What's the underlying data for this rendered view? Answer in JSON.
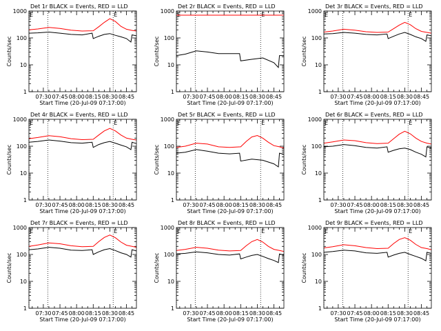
{
  "colors": {
    "events": "#000000",
    "lld": "#ff0000",
    "axis": "#000000",
    "background": "#ffffff"
  },
  "common": {
    "ylabel": "Counts/sec",
    "xlabel": "Start Time (20-Jul-09 07:17:00)",
    "xticks": [
      "07:30",
      "07:45",
      "08:00",
      "08:15",
      "08:30",
      "08:45"
    ],
    "yticks": [
      "1",
      "10",
      "100",
      "1000"
    ],
    "marker_labels": [
      "E",
      "E"
    ]
  },
  "chart_data": [
    {
      "type": "line",
      "title": "Det 1r BLACK = Events, RED = LLD",
      "xlim": [
        "07:17",
        "08:54"
      ],
      "ylim": [
        1,
        1000
      ],
      "yscale": "log",
      "markers": [
        "07:17",
        "07:34",
        "08:33"
      ],
      "series": [
        {
          "color": "red",
          "x": [
            "07:17",
            "07:25",
            "07:35",
            "07:45",
            "07:55",
            "08:05",
            "08:15",
            "08:20",
            "08:25",
            "08:30",
            "08:35",
            "08:40",
            "08:45",
            "08:50",
            "08:54"
          ],
          "y": [
            200,
            215,
            245,
            225,
            195,
            180,
            185,
            260,
            380,
            520,
            410,
            270,
            210,
            190,
            180
          ]
        },
        {
          "color": "black",
          "x": [
            "07:17",
            "07:25",
            "07:35",
            "07:45",
            "07:55",
            "08:05",
            "08:14",
            "08:15",
            "08:20",
            "08:25",
            "08:30",
            "08:35",
            "08:40",
            "08:45",
            "08:49",
            "08:50",
            "08:54"
          ],
          "y": [
            150,
            155,
            165,
            150,
            135,
            130,
            150,
            95,
            115,
            135,
            145,
            125,
            110,
            95,
            70,
            130,
            120
          ]
        }
      ]
    },
    {
      "type": "line",
      "title": "Det 2r BLACK = Events, RED = LLD",
      "xlim": [
        "07:17",
        "08:54"
      ],
      "ylim": [
        1,
        1000
      ],
      "yscale": "log",
      "markers": [
        "07:17",
        "07:34",
        "08:33"
      ],
      "series": [
        {
          "color": "red",
          "x": [
            "07:17",
            "07:35",
            "08:00",
            "08:30",
            "08:54"
          ],
          "y": [
            700,
            700,
            700,
            700,
            700
          ]
        },
        {
          "color": "black",
          "x": [
            "07:17",
            "07:25",
            "07:35",
            "07:45",
            "07:55",
            "08:05",
            "08:14",
            "08:15",
            "08:25",
            "08:35",
            "08:45",
            "08:49",
            "08:50",
            "08:54"
          ],
          "y": [
            22,
            25,
            33,
            30,
            26,
            26,
            26,
            14,
            16,
            18,
            12,
            8,
            22,
            22
          ]
        }
      ]
    },
    {
      "type": "line",
      "title": "Det 3r BLACK = Events, RED = LLD",
      "xlim": [
        "07:17",
        "08:54"
      ],
      "ylim": [
        1,
        1000
      ],
      "yscale": "log",
      "markers": [
        "07:17",
        "07:34",
        "08:33"
      ],
      "series": [
        {
          "color": "red",
          "x": [
            "07:17",
            "07:25",
            "07:35",
            "07:45",
            "07:55",
            "08:05",
            "08:15",
            "08:20",
            "08:25",
            "08:30",
            "08:35",
            "08:40",
            "08:45",
            "08:50",
            "08:54"
          ],
          "y": [
            165,
            180,
            210,
            195,
            170,
            160,
            165,
            220,
            300,
            380,
            310,
            220,
            175,
            160,
            150
          ]
        },
        {
          "color": "black",
          "x": [
            "07:17",
            "07:25",
            "07:35",
            "07:45",
            "07:55",
            "08:05",
            "08:14",
            "08:15",
            "08:20",
            "08:25",
            "08:30",
            "08:35",
            "08:40",
            "08:45",
            "08:49",
            "08:50",
            "08:54"
          ],
          "y": [
            140,
            145,
            160,
            150,
            135,
            130,
            140,
            95,
            115,
            140,
            160,
            135,
            110,
            95,
            75,
            130,
            120
          ]
        }
      ]
    },
    {
      "type": "line",
      "title": "Det 4r BLACK = Events, RED = LLD",
      "xlim": [
        "07:17",
        "08:54"
      ],
      "ylim": [
        1,
        1000
      ],
      "yscale": "log",
      "markers": [
        "07:17",
        "07:34",
        "08:33"
      ],
      "series": [
        {
          "color": "red",
          "x": [
            "07:17",
            "07:25",
            "07:35",
            "07:45",
            "07:55",
            "08:05",
            "08:15",
            "08:20",
            "08:25",
            "08:30",
            "08:35",
            "08:40",
            "08:45",
            "08:50",
            "08:54"
          ],
          "y": [
            190,
            210,
            245,
            225,
            190,
            175,
            180,
            260,
            370,
            460,
            370,
            260,
            200,
            180,
            170
          ]
        },
        {
          "color": "black",
          "x": [
            "07:17",
            "07:25",
            "07:35",
            "07:45",
            "07:55",
            "08:05",
            "08:14",
            "08:15",
            "08:20",
            "08:25",
            "08:30",
            "08:35",
            "08:40",
            "08:45",
            "08:49",
            "08:50",
            "08:54"
          ],
          "y": [
            140,
            150,
            170,
            155,
            135,
            130,
            140,
            90,
            115,
            135,
            150,
            130,
            110,
            95,
            75,
            140,
            125
          ]
        }
      ]
    },
    {
      "type": "line",
      "title": "Det 5r BLACK = Events, RED = LLD",
      "xlim": [
        "07:17",
        "08:54"
      ],
      "ylim": [
        1,
        1000
      ],
      "yscale": "log",
      "markers": [
        "07:17",
        "07:34",
        "08:33"
      ],
      "series": [
        {
          "color": "red",
          "x": [
            "07:17",
            "07:25",
            "07:35",
            "07:45",
            "07:55",
            "08:05",
            "08:15",
            "08:20",
            "08:25",
            "08:30",
            "08:35",
            "08:40",
            "08:45",
            "08:50",
            "08:54"
          ],
          "y": [
            90,
            100,
            130,
            120,
            95,
            90,
            95,
            150,
            220,
            250,
            200,
            140,
            105,
            95,
            85
          ]
        },
        {
          "color": "black",
          "x": [
            "07:17",
            "07:25",
            "07:35",
            "07:45",
            "07:55",
            "08:05",
            "08:14",
            "08:15",
            "08:25",
            "08:35",
            "08:45",
            "08:49",
            "08:50",
            "08:54"
          ],
          "y": [
            55,
            60,
            75,
            65,
            55,
            52,
            55,
            28,
            33,
            30,
            22,
            17,
            55,
            50
          ]
        }
      ]
    },
    {
      "type": "line",
      "title": "Det 6r BLACK = Events, RED = LLD",
      "xlim": [
        "07:17",
        "08:54"
      ],
      "ylim": [
        1,
        1000
      ],
      "yscale": "log",
      "markers": [
        "07:17",
        "07:34",
        "08:33"
      ],
      "series": [
        {
          "color": "red",
          "x": [
            "07:17",
            "07:25",
            "07:35",
            "07:45",
            "07:55",
            "08:05",
            "08:15",
            "08:20",
            "08:25",
            "08:30",
            "08:35",
            "08:40",
            "08:45",
            "08:50",
            "08:54"
          ],
          "y": [
            130,
            145,
            170,
            160,
            135,
            125,
            130,
            190,
            280,
            360,
            290,
            200,
            150,
            130,
            120
          ]
        },
        {
          "color": "black",
          "x": [
            "07:17",
            "07:25",
            "07:35",
            "07:45",
            "07:55",
            "08:05",
            "08:14",
            "08:15",
            "08:20",
            "08:25",
            "08:30",
            "08:35",
            "08:40",
            "08:45",
            "08:49",
            "08:50",
            "08:54"
          ],
          "y": [
            95,
            100,
            115,
            105,
            90,
            85,
            95,
            60,
            70,
            80,
            85,
            75,
            60,
            50,
            40,
            95,
            85
          ]
        }
      ]
    },
    {
      "type": "line",
      "title": "Det 7r BLACK = Events, RED = LLD",
      "xlim": [
        "07:17",
        "08:54"
      ],
      "ylim": [
        1,
        1000
      ],
      "yscale": "log",
      "markers": [
        "07:17",
        "07:34",
        "08:33"
      ],
      "series": [
        {
          "color": "red",
          "x": [
            "07:17",
            "07:25",
            "07:35",
            "07:45",
            "07:55",
            "08:05",
            "08:15",
            "08:20",
            "08:25",
            "08:30",
            "08:35",
            "08:40",
            "08:45",
            "08:50",
            "08:54"
          ],
          "y": [
            200,
            225,
            270,
            250,
            210,
            195,
            200,
            300,
            430,
            530,
            420,
            290,
            220,
            200,
            185
          ]
        },
        {
          "color": "black",
          "x": [
            "07:17",
            "07:25",
            "07:35",
            "07:45",
            "07:55",
            "08:05",
            "08:14",
            "08:15",
            "08:20",
            "08:25",
            "08:30",
            "08:35",
            "08:40",
            "08:45",
            "08:49",
            "08:50",
            "08:54"
          ],
          "y": [
            150,
            160,
            185,
            170,
            145,
            140,
            150,
            100,
            125,
            150,
            165,
            140,
            115,
            100,
            80,
            150,
            135
          ]
        }
      ]
    },
    {
      "type": "line",
      "title": "Det 8r BLACK = Events, RED = LLD",
      "xlim": [
        "07:17",
        "08:54"
      ],
      "ylim": [
        1,
        1000
      ],
      "yscale": "log",
      "markers": [
        "07:17",
        "07:34",
        "08:33"
      ],
      "series": [
        {
          "color": "red",
          "x": [
            "07:17",
            "07:25",
            "07:35",
            "07:45",
            "07:55",
            "08:05",
            "08:15",
            "08:20",
            "08:25",
            "08:30",
            "08:35",
            "08:40",
            "08:45",
            "08:50",
            "08:54"
          ],
          "y": [
            140,
            155,
            185,
            170,
            145,
            135,
            140,
            210,
            300,
            360,
            290,
            200,
            155,
            140,
            130
          ]
        },
        {
          "color": "black",
          "x": [
            "07:17",
            "07:25",
            "07:35",
            "07:45",
            "07:55",
            "08:05",
            "08:14",
            "08:15",
            "08:20",
            "08:25",
            "08:30",
            "08:35",
            "08:40",
            "08:45",
            "08:49",
            "08:50",
            "08:54"
          ],
          "y": [
            105,
            110,
            125,
            115,
            100,
            95,
            105,
            68,
            80,
            92,
            100,
            85,
            70,
            60,
            50,
            105,
            95
          ]
        }
      ]
    },
    {
      "type": "line",
      "title": "Det 9r BLACK = Events, RED = LLD",
      "xlim": [
        "07:17",
        "08:54"
      ],
      "ylim": [
        1,
        1000
      ],
      "yscale": "log",
      "markers": [
        "07:17",
        "07:34",
        "08:33"
      ],
      "series": [
        {
          "color": "red",
          "x": [
            "07:17",
            "07:25",
            "07:35",
            "07:45",
            "07:55",
            "08:05",
            "08:15",
            "08:20",
            "08:25",
            "08:30",
            "08:35",
            "08:40",
            "08:45",
            "08:50",
            "08:54"
          ],
          "y": [
            175,
            195,
            230,
            210,
            180,
            165,
            170,
            255,
            360,
            420,
            340,
            235,
            180,
            165,
            150
          ]
        },
        {
          "color": "black",
          "x": [
            "07:17",
            "07:25",
            "07:35",
            "07:45",
            "07:55",
            "08:05",
            "08:14",
            "08:15",
            "08:20",
            "08:25",
            "08:30",
            "08:35",
            "08:40",
            "08:45",
            "08:49",
            "08:50",
            "08:54"
          ],
          "y": [
            120,
            128,
            145,
            135,
            115,
            110,
            120,
            80,
            95,
            110,
            120,
            100,
            85,
            72,
            58,
            120,
            110
          ]
        }
      ]
    }
  ]
}
